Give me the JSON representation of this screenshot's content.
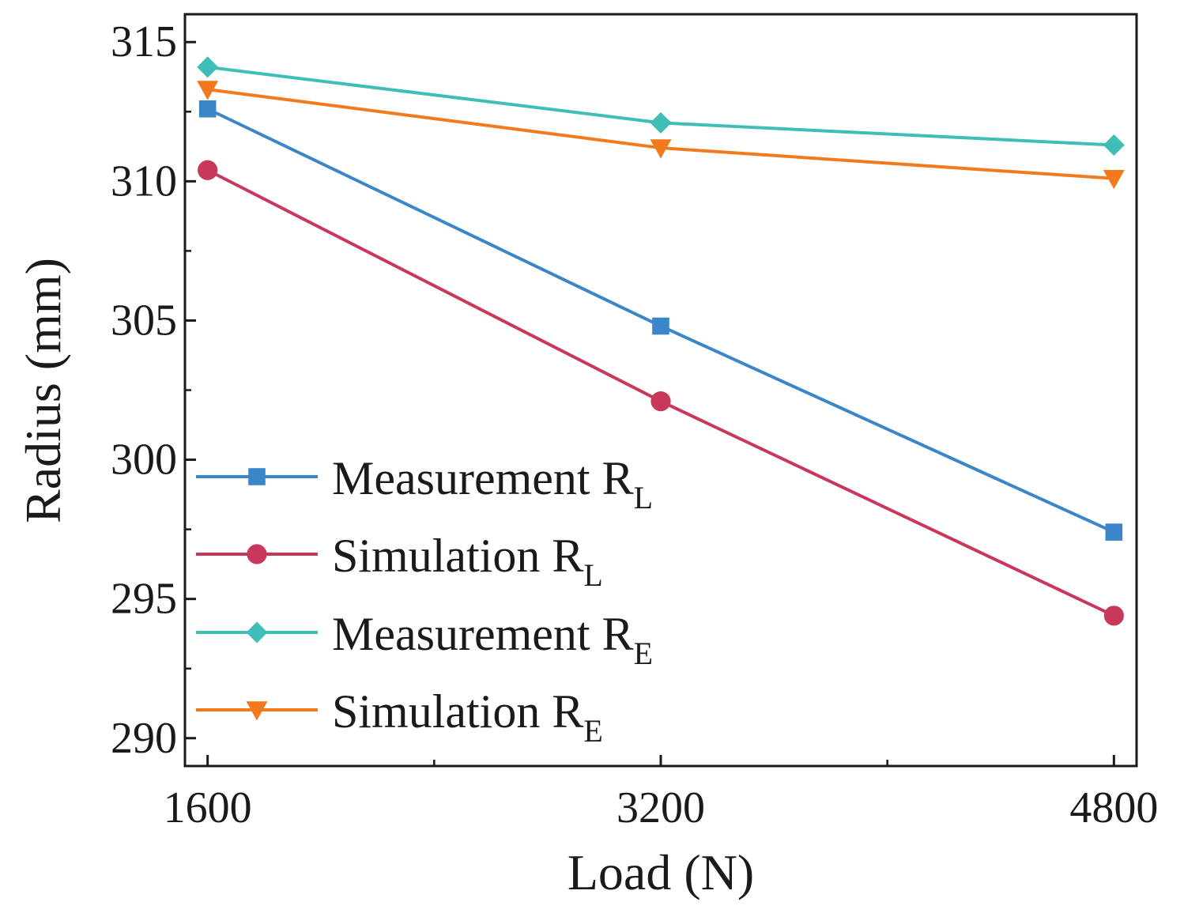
{
  "chart_data": {
    "type": "line",
    "xlabel": "Load (N)",
    "ylabel": "Radius (mm)",
    "x": [
      1600,
      3200,
      4800
    ],
    "xticks": [
      "1600",
      "3200",
      "4800"
    ],
    "xlim": [
      1520,
      4880
    ],
    "ylim": [
      289,
      316
    ],
    "yticks": [
      "290",
      "295",
      "300",
      "305",
      "310",
      "315"
    ],
    "grid": false,
    "legend_position": "lower-left",
    "series": [
      {
        "name_main": "Measurement R",
        "name_sub": "L",
        "values": [
          312.6,
          304.8,
          297.4
        ],
        "color": "#3a86c8",
        "marker": "square"
      },
      {
        "name_main": "Simulation R",
        "name_sub": "L",
        "values": [
          310.4,
          302.1,
          294.4
        ],
        "color": "#c8385a",
        "marker": "circle"
      },
      {
        "name_main": "Measurement R",
        "name_sub": "E",
        "values": [
          314.1,
          312.1,
          311.3
        ],
        "color": "#3fbdb7",
        "marker": "diamond"
      },
      {
        "name_main": "Simulation R",
        "name_sub": "E",
        "values": [
          313.3,
          311.2,
          310.1
        ],
        "color": "#f27a1c",
        "marker": "triangle-down"
      }
    ]
  }
}
